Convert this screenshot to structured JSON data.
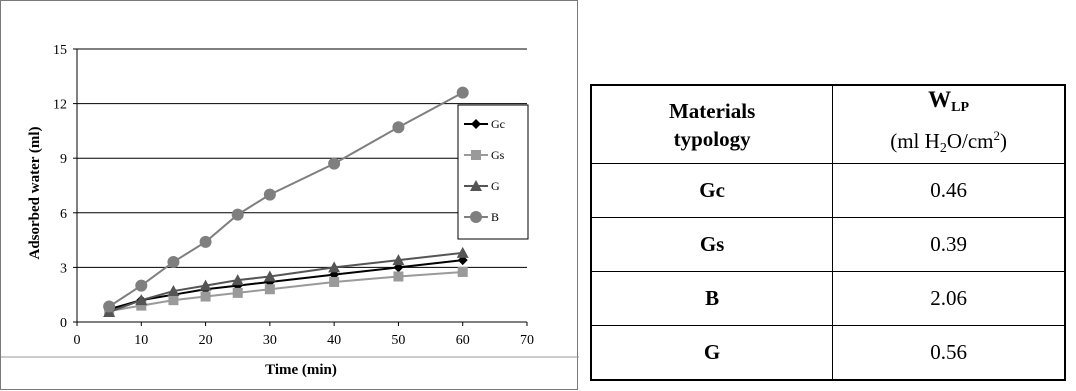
{
  "chart_data": {
    "type": "line",
    "xlabel": "Time (min)",
    "ylabel": "Adsorbed water (ml)",
    "xlim": [
      0,
      70
    ],
    "ylim": [
      0,
      15
    ],
    "xticks": [
      0,
      10,
      20,
      30,
      40,
      50,
      60,
      70
    ],
    "yticks": [
      0,
      3,
      6,
      9,
      12,
      15
    ],
    "grid": "horizontal",
    "legend_position": "right",
    "x": [
      5,
      10,
      15,
      20,
      25,
      30,
      40,
      50,
      60
    ],
    "series": [
      {
        "name": "Gc",
        "marker": "diamond",
        "color": "#000000",
        "values": [
          0.7,
          1.2,
          1.5,
          1.8,
          2.0,
          2.2,
          2.6,
          3.0,
          3.4
        ]
      },
      {
        "name": "Gs",
        "marker": "square",
        "color": "#9a9a9a",
        "values": [
          0.6,
          0.9,
          1.2,
          1.4,
          1.6,
          1.8,
          2.2,
          2.5,
          2.75
        ]
      },
      {
        "name": "G",
        "marker": "triangle",
        "color": "#555555",
        "values": [
          0.55,
          1.2,
          1.7,
          2.0,
          2.3,
          2.5,
          3.0,
          3.4,
          3.8
        ]
      },
      {
        "name": "B",
        "marker": "circle",
        "color": "#7f7f7f",
        "values": [
          0.85,
          2.0,
          3.3,
          4.4,
          5.9,
          7.0,
          8.7,
          10.7,
          12.6
        ]
      }
    ]
  },
  "table": {
    "header": {
      "col1_line1": "Materials",
      "col1_line2": "typology",
      "col2_symbol": "W",
      "col2_sub": "LP",
      "col2_unit_pre": "(ml H",
      "col2_unit_sub": "2",
      "col2_unit_mid": "O/cm",
      "col2_unit_sup": "2",
      "col2_unit_post": ")"
    },
    "rows": [
      {
        "material": "Gc",
        "value": "0.46"
      },
      {
        "material": "Gs",
        "value": "0.39"
      },
      {
        "material": "B",
        "value": "2.06"
      },
      {
        "material": "G",
        "value": "0.56"
      }
    ]
  }
}
